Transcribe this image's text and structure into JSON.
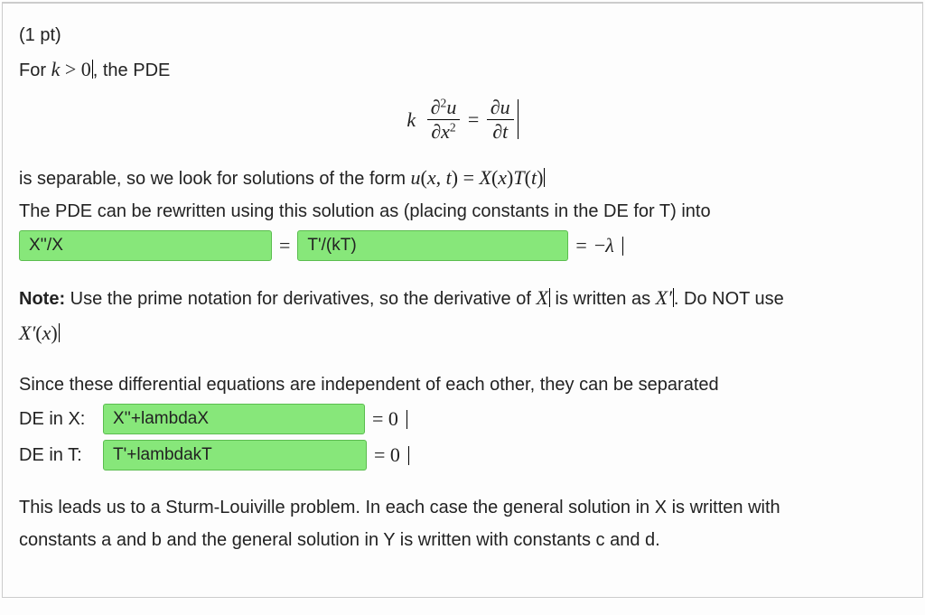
{
  "points_label": "(1 pt)",
  "intro_prefix": "For ",
  "intro_math": "k > 0",
  "intro_suffix": ", the PDE",
  "central_eq": {
    "k": "k",
    "num_left": "∂",
    "num_left_sup": "2",
    "num_var": "u",
    "den_left": "∂x",
    "den_left_sup": "2",
    "eq": " = ",
    "num_right": "∂u",
    "den_right": "∂t"
  },
  "sep_line_a": "is separable, so we look for solutions of the form ",
  "sep_math": "u(x, t) = X(x)T(t)",
  "rewrite_line": "The PDE can be rewritten using this solution as (placing constants in the DE for T) into",
  "answers": {
    "lhs": "X''/X",
    "rhs": "T'/(kT)",
    "lambda": "−λ"
  },
  "box_widths": {
    "lhs": "280px",
    "rhs": "300px",
    "deX": "290px",
    "deT": "292px"
  },
  "eq_sign": "=",
  "note_label": "Note:",
  "note_text_a": " Use the prime notation for derivatives, so the derivative of ",
  "note_X": "X",
  "note_text_b": " is written as ",
  "note_Xp": "X′",
  "note_text_c": ". Do NOT use",
  "note_Xpx": "X′(x)",
  "indep_line": "Since these differential equations are independent of each other, they can be separated",
  "deX_label": "DE in X:",
  "deX_ans": "X''+lambdaX",
  "deT_label": "DE in T:",
  "deT_ans": "T'+lambdakT",
  "eq0": "= 0",
  "final_a": "This leads us to a Sturm-Louiville problem. In each case the general solution in X is written with",
  "final_b": "constants a and b and the general solution in Y is written with constants c and d.",
  "colors": {
    "answer_bg": "#87e77a",
    "answer_border": "#5bbd4f",
    "page_border": "#ccc",
    "text": "#222",
    "bg": "#fdfdfd"
  }
}
